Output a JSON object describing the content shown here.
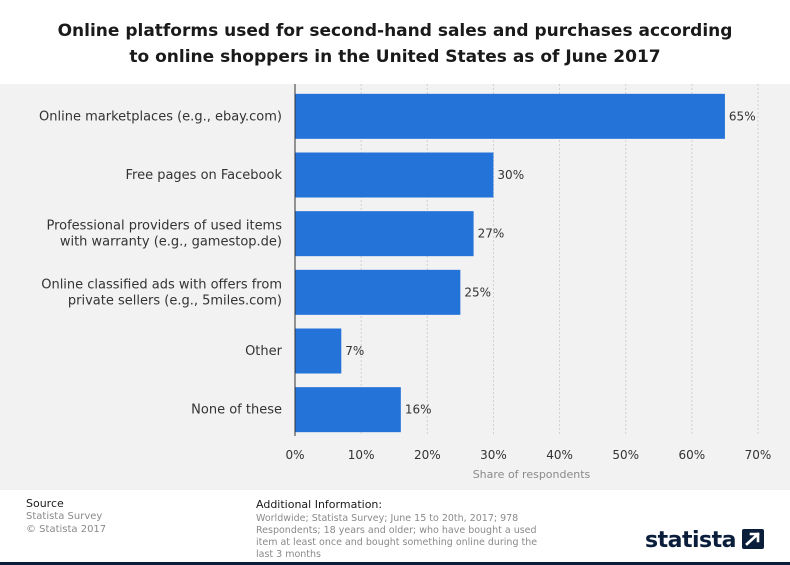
{
  "colors": {
    "bar": "#2373d9",
    "grid": "#d0d0d0",
    "axis": "#333333"
  },
  "chart_data": {
    "type": "bar",
    "orientation": "horizontal",
    "title": "Online platforms used for second-hand sales and purchases according to online shoppers in the United States as of June 2017",
    "title_lines": [
      "Online platforms used for second-hand sales and purchases according",
      "to online shoppers in the United States as of June 2017"
    ],
    "categories": [
      [
        "Online marketplaces (e.g., ebay.com)"
      ],
      [
        "Free pages on Facebook"
      ],
      [
        "Professional providers of used items",
        "with warranty (e.g., gamestop.de)"
      ],
      [
        "Online classified ads with offers from",
        "private sellers (e.g., 5miles.com)"
      ],
      [
        "Other"
      ],
      [
        "None of these"
      ]
    ],
    "values": [
      65,
      30,
      27,
      25,
      7,
      16
    ],
    "value_labels": [
      "65%",
      "30%",
      "27%",
      "25%",
      "7%",
      "16%"
    ],
    "xlabel": "Share of respondents",
    "xlim": [
      0,
      70
    ],
    "xticks": [
      0,
      10,
      20,
      30,
      40,
      50,
      60,
      70
    ],
    "xtick_labels": [
      "0%",
      "10%",
      "20%",
      "30%",
      "40%",
      "50%",
      "60%",
      "70%"
    ],
    "grid": true
  },
  "footer": {
    "source_heading": "Source",
    "source_lines": [
      "Statista Survey",
      "© Statista 2017"
    ],
    "info_heading": "Additional Information:",
    "info_text": "Worldwide; Statista Survey; June 15 to 20th, 2017; 978 Respondents; 18 years and older; who have bought a used item at least once and bought something online during the last 3 months",
    "logo_text": "statista",
    "logo_icon": "statista-arrow-icon"
  }
}
